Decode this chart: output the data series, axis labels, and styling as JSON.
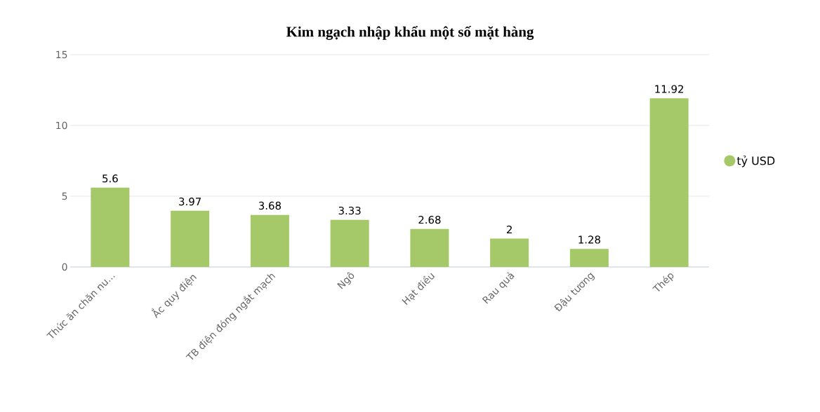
{
  "chart_data": {
    "type": "bar",
    "title": "Kim ngạch nhập khẩu một số mặt hàng",
    "categories": [
      "Thức ăn chăn nu...",
      "Ắc quy điện",
      "TB điện đóng ngắt mạch",
      "Ngô",
      "Hạt điều",
      "Rau quả",
      "Đậu tương",
      "Thép"
    ],
    "series": [
      {
        "name": "tỷ USD",
        "color": "#a5c968",
        "values": [
          5.6,
          3.97,
          3.68,
          3.33,
          2.68,
          2,
          1.28,
          11.92
        ],
        "value_labels": [
          "5.6",
          "3.97",
          "3.68",
          "3.33",
          "2.68",
          "2",
          "1.28",
          "11.92"
        ]
      }
    ],
    "ylim": [
      0,
      15
    ],
    "yticks": [
      0,
      5,
      10,
      15
    ],
    "grid": "y",
    "legend": "right"
  }
}
